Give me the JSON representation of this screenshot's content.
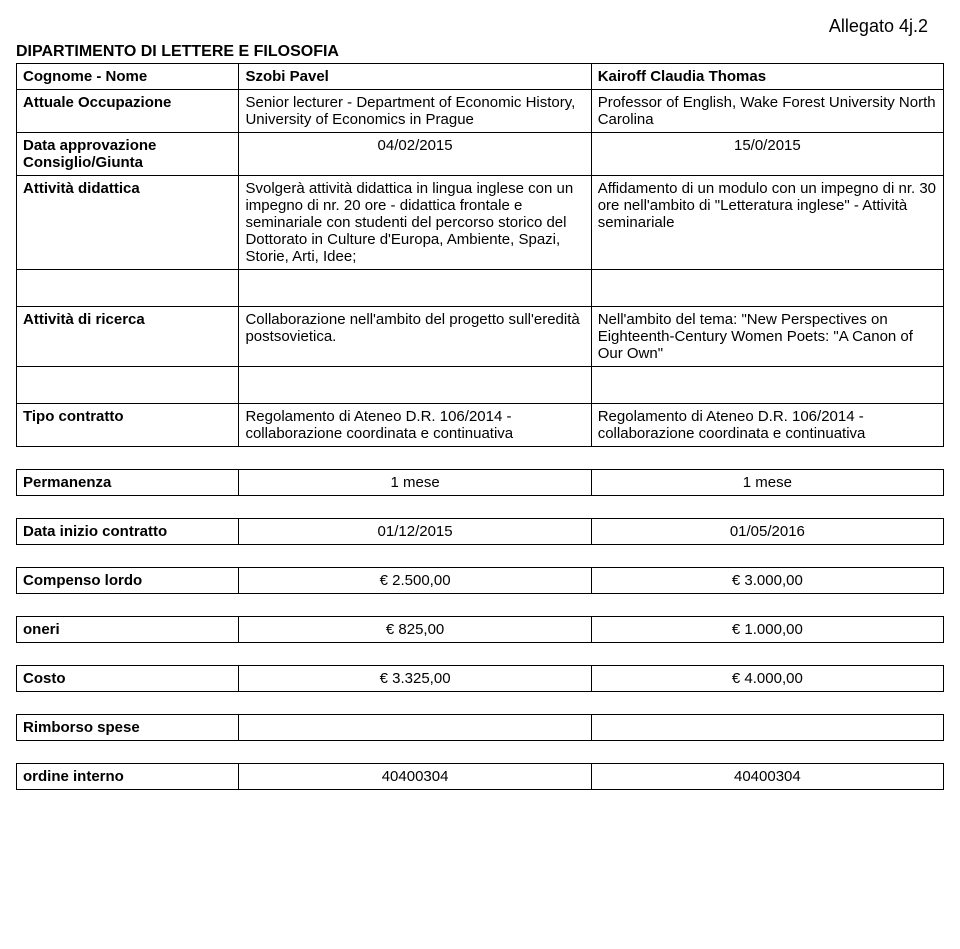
{
  "annex": "Allegato 4j.2",
  "department": "DIPARTIMENTO DI LETTERE E FILOSOFIA",
  "labels": {
    "name": "Cognome - Nome",
    "occupation": "Attuale Occupazione",
    "approval": "Data approvazione Consiglio/Giunta",
    "teaching": "Attività didattica",
    "research": "Attività di ricerca",
    "contract": "Tipo contratto",
    "stay": "Permanenza",
    "startDate": "Data inizio contratto",
    "gross": "Compenso lordo",
    "charges": "oneri",
    "cost": "Costo",
    "reimb": "Rimborso spese",
    "order": "ordine interno"
  },
  "col1": {
    "name": "Szobi Pavel",
    "occupation": "Senior lecturer - Department of Economic History, University of Economics in Prague",
    "approval": "04/02/2015",
    "teaching": "Svolgerà attività didattica in lingua inglese con un impegno di nr. 20 ore - didattica frontale e seminariale con studenti del percorso storico del Dottorato in Culture d'Europa, Ambiente, Spazi, Storie, Arti, Idee;",
    "research": "Collaborazione nell'ambito del progetto sull'eredità postsovietica.",
    "contract": "Regolamento di Ateneo D.R. 106/2014 - collaborazione coordinata e continuativa",
    "stay": "1 mese",
    "startDate": "01/12/2015",
    "gross": "€ 2.500,00",
    "charges": "€ 825,00",
    "cost": "€ 3.325,00",
    "reimb": "",
    "order": "40400304"
  },
  "col2": {
    "name": "Kairoff Claudia Thomas",
    "occupation": "Professor of English, Wake Forest University North Carolina",
    "approval": "15/0/2015",
    "teaching": "Affidamento di un modulo con un impegno di nr. 30 ore nell'ambito di \"Letteratura inglese\" - Attività seminariale",
    "research": "Nell'ambito del tema: \"New Perspectives on Eighteenth-Century Women Poets: \"A Canon of Our Own\"",
    "contract": "Regolamento di Ateneo D.R. 106/2014 - collaborazione coordinata e continuativa",
    "stay": "1 mese",
    "startDate": "01/05/2016",
    "gross": "€ 3.000,00",
    "charges": "€ 1.000,00",
    "cost": "€ 4.000,00",
    "reimb": "",
    "order": "40400304"
  }
}
